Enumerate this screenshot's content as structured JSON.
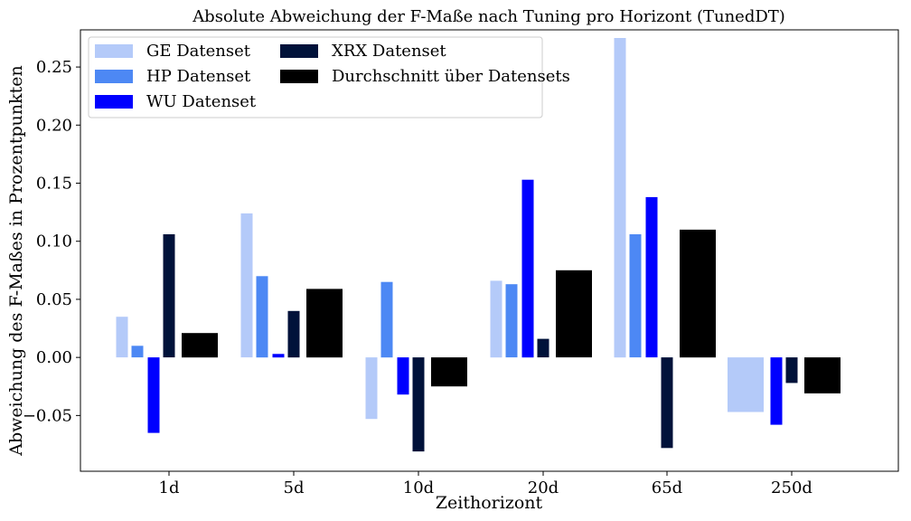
{
  "chart_data": {
    "type": "bar",
    "title": "Absolute Abweichung der F-Maße nach Tuning pro Horizont (TunedDT)",
    "xlabel": "Zeithorizont",
    "ylabel": "Abweichung des F-Maßes in Prozentpunkten",
    "categories": [
      "1d",
      "5d",
      "10d",
      "20d",
      "65d",
      "250d"
    ],
    "ylim": [
      -0.098,
      0.282
    ],
    "yticks": [
      -0.05,
      0.0,
      0.05,
      0.1,
      0.15,
      0.2,
      0.25
    ],
    "ytick_labels": [
      "−0.05",
      "0.00",
      "0.05",
      "0.10",
      "0.15",
      "0.20",
      "0.25"
    ],
    "grid": false,
    "legend_position": "top-left",
    "series": [
      {
        "name": "GE Datenset",
        "color": "#b4caf9",
        "values": [
          0.035,
          0.124,
          -0.053,
          0.066,
          0.275,
          -0.047
        ]
      },
      {
        "name": "HP Datenset",
        "color": "#4d88f4",
        "values": [
          0.01,
          0.07,
          0.065,
          0.063,
          0.106,
          null
        ]
      },
      {
        "name": "WU Datenset",
        "color": "#0000ff",
        "values": [
          -0.065,
          0.003,
          -0.032,
          0.153,
          0.138,
          -0.058
        ]
      },
      {
        "name": "XRX Datenset",
        "color": "#00123a",
        "values": [
          0.106,
          0.04,
          -0.081,
          0.016,
          -0.078,
          -0.022
        ]
      },
      {
        "name": "Durchschnitt über Datensets",
        "color": "#000000",
        "values": [
          0.021,
          0.059,
          -0.025,
          0.075,
          0.11,
          -0.031
        ]
      }
    ]
  }
}
